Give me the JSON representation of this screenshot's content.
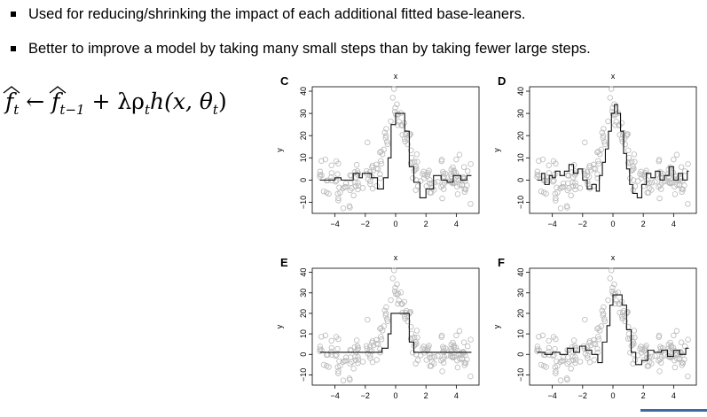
{
  "bullets": [
    "Used for reducing/shrinking the impact of each additional fitted base-leaners.",
    "Better to improve a model by taking many small steps than by taking fewer large steps."
  ],
  "formula": {
    "lhs": "f",
    "lhs_sub": "t",
    "arrow": "←",
    "rhs_f": "f",
    "rhs_f_sub": "t−1",
    "plus": "+",
    "lambda": "λ",
    "rho": "ρ",
    "rho_sub": "t",
    "h_term": "h(x, θ",
    "theta_sub": "t",
    "close": ")"
  },
  "chart_data": [
    {
      "type": "scatter",
      "panel": "C",
      "xlabel": "x",
      "ylabel": "y",
      "xlim": [
        -5.5,
        5.5
      ],
      "ylim": [
        -15,
        42
      ],
      "xticks": [
        -4,
        -2,
        0,
        2,
        4
      ],
      "yticks": [
        -10,
        0,
        10,
        20,
        30,
        40
      ],
      "step_x": [
        -5,
        -4.4,
        -4.0,
        -3.6,
        -2.8,
        -2.4,
        -2.2,
        -1.6,
        -1.2,
        -0.8,
        -0.5,
        -0.3,
        0.0,
        0.3,
        0.6,
        0.9,
        1.2,
        1.6,
        2.0,
        2.5,
        3.0,
        3.4,
        3.8,
        4.3,
        4.7,
        5.0
      ],
      "step_y": [
        0,
        0,
        1,
        0,
        3,
        1,
        3,
        1,
        -4,
        1,
        10,
        25,
        30,
        30,
        22,
        6,
        -1,
        -8,
        -4,
        2,
        0,
        -1,
        2,
        0,
        2,
        2
      ]
    },
    {
      "type": "scatter",
      "panel": "D",
      "xlabel": "x",
      "ylabel": "y",
      "xlim": [
        -5.5,
        5.5
      ],
      "ylim": [
        -15,
        42
      ],
      "xticks": [
        -4,
        -2,
        0,
        2,
        4
      ],
      "yticks": [
        -10,
        0,
        10,
        20,
        30,
        40
      ],
      "step_x": [
        -5,
        -4.7,
        -4.5,
        -4.2,
        -4.0,
        -3.8,
        -3.5,
        -3.2,
        -2.9,
        -2.6,
        -2.3,
        -2.0,
        -1.7,
        -1.4,
        -1.1,
        -0.9,
        -0.7,
        -0.5,
        -0.3,
        -0.1,
        0.1,
        0.3,
        0.5,
        0.7,
        0.9,
        1.1,
        1.3,
        1.6,
        1.9,
        2.2,
        2.5,
        2.8,
        3.1,
        3.4,
        3.7,
        4.0,
        4.3,
        4.6,
        4.9
      ],
      "step_y": [
        0,
        3,
        -2,
        2,
        1,
        4,
        2,
        4,
        7,
        3,
        5,
        0,
        -4,
        -2,
        -5,
        2,
        8,
        14,
        22,
        30,
        34,
        30,
        22,
        12,
        5,
        -2,
        -6,
        -8,
        -2,
        3,
        1,
        4,
        0,
        2,
        6,
        0,
        3,
        0,
        4
      ]
    },
    {
      "type": "scatter",
      "panel": "E",
      "xlabel": "x",
      "ylabel": "y",
      "xlim": [
        -5.5,
        5.5
      ],
      "ylim": [
        -15,
        42
      ],
      "xticks": [
        -4,
        -2,
        0,
        2,
        4
      ],
      "yticks": [
        -10,
        0,
        10,
        20,
        30,
        40
      ],
      "step_x": [
        -5,
        -1.2,
        -0.9,
        -0.5,
        -0.3,
        0.0,
        0.5,
        0.9,
        1.2,
        5.0
      ],
      "step_y": [
        1,
        1,
        3,
        10,
        20,
        20,
        20,
        6,
        1,
        1
      ]
    },
    {
      "type": "scatter",
      "panel": "F",
      "xlabel": "x",
      "ylabel": "y",
      "xlim": [
        -5.5,
        5.5
      ],
      "ylim": [
        -15,
        42
      ],
      "xticks": [
        -4,
        -2,
        0,
        2,
        4
      ],
      "yticks": [
        -10,
        0,
        10,
        20,
        30,
        40
      ],
      "step_x": [
        -5,
        -4.5,
        -4.0,
        -3.5,
        -3.0,
        -2.6,
        -2.2,
        -1.8,
        -1.4,
        -1.0,
        -0.7,
        -0.4,
        -0.2,
        0.0,
        0.3,
        0.6,
        0.9,
        1.2,
        1.5,
        1.9,
        2.3,
        2.7,
        3.2,
        3.6,
        4.0,
        4.4,
        4.8
      ],
      "step_y": [
        1,
        0,
        1,
        0,
        3,
        1,
        4,
        2,
        0,
        -4,
        6,
        14,
        24,
        29,
        29,
        24,
        12,
        1,
        -5,
        -3,
        2,
        1,
        2,
        -1,
        2,
        0,
        3
      ]
    }
  ]
}
